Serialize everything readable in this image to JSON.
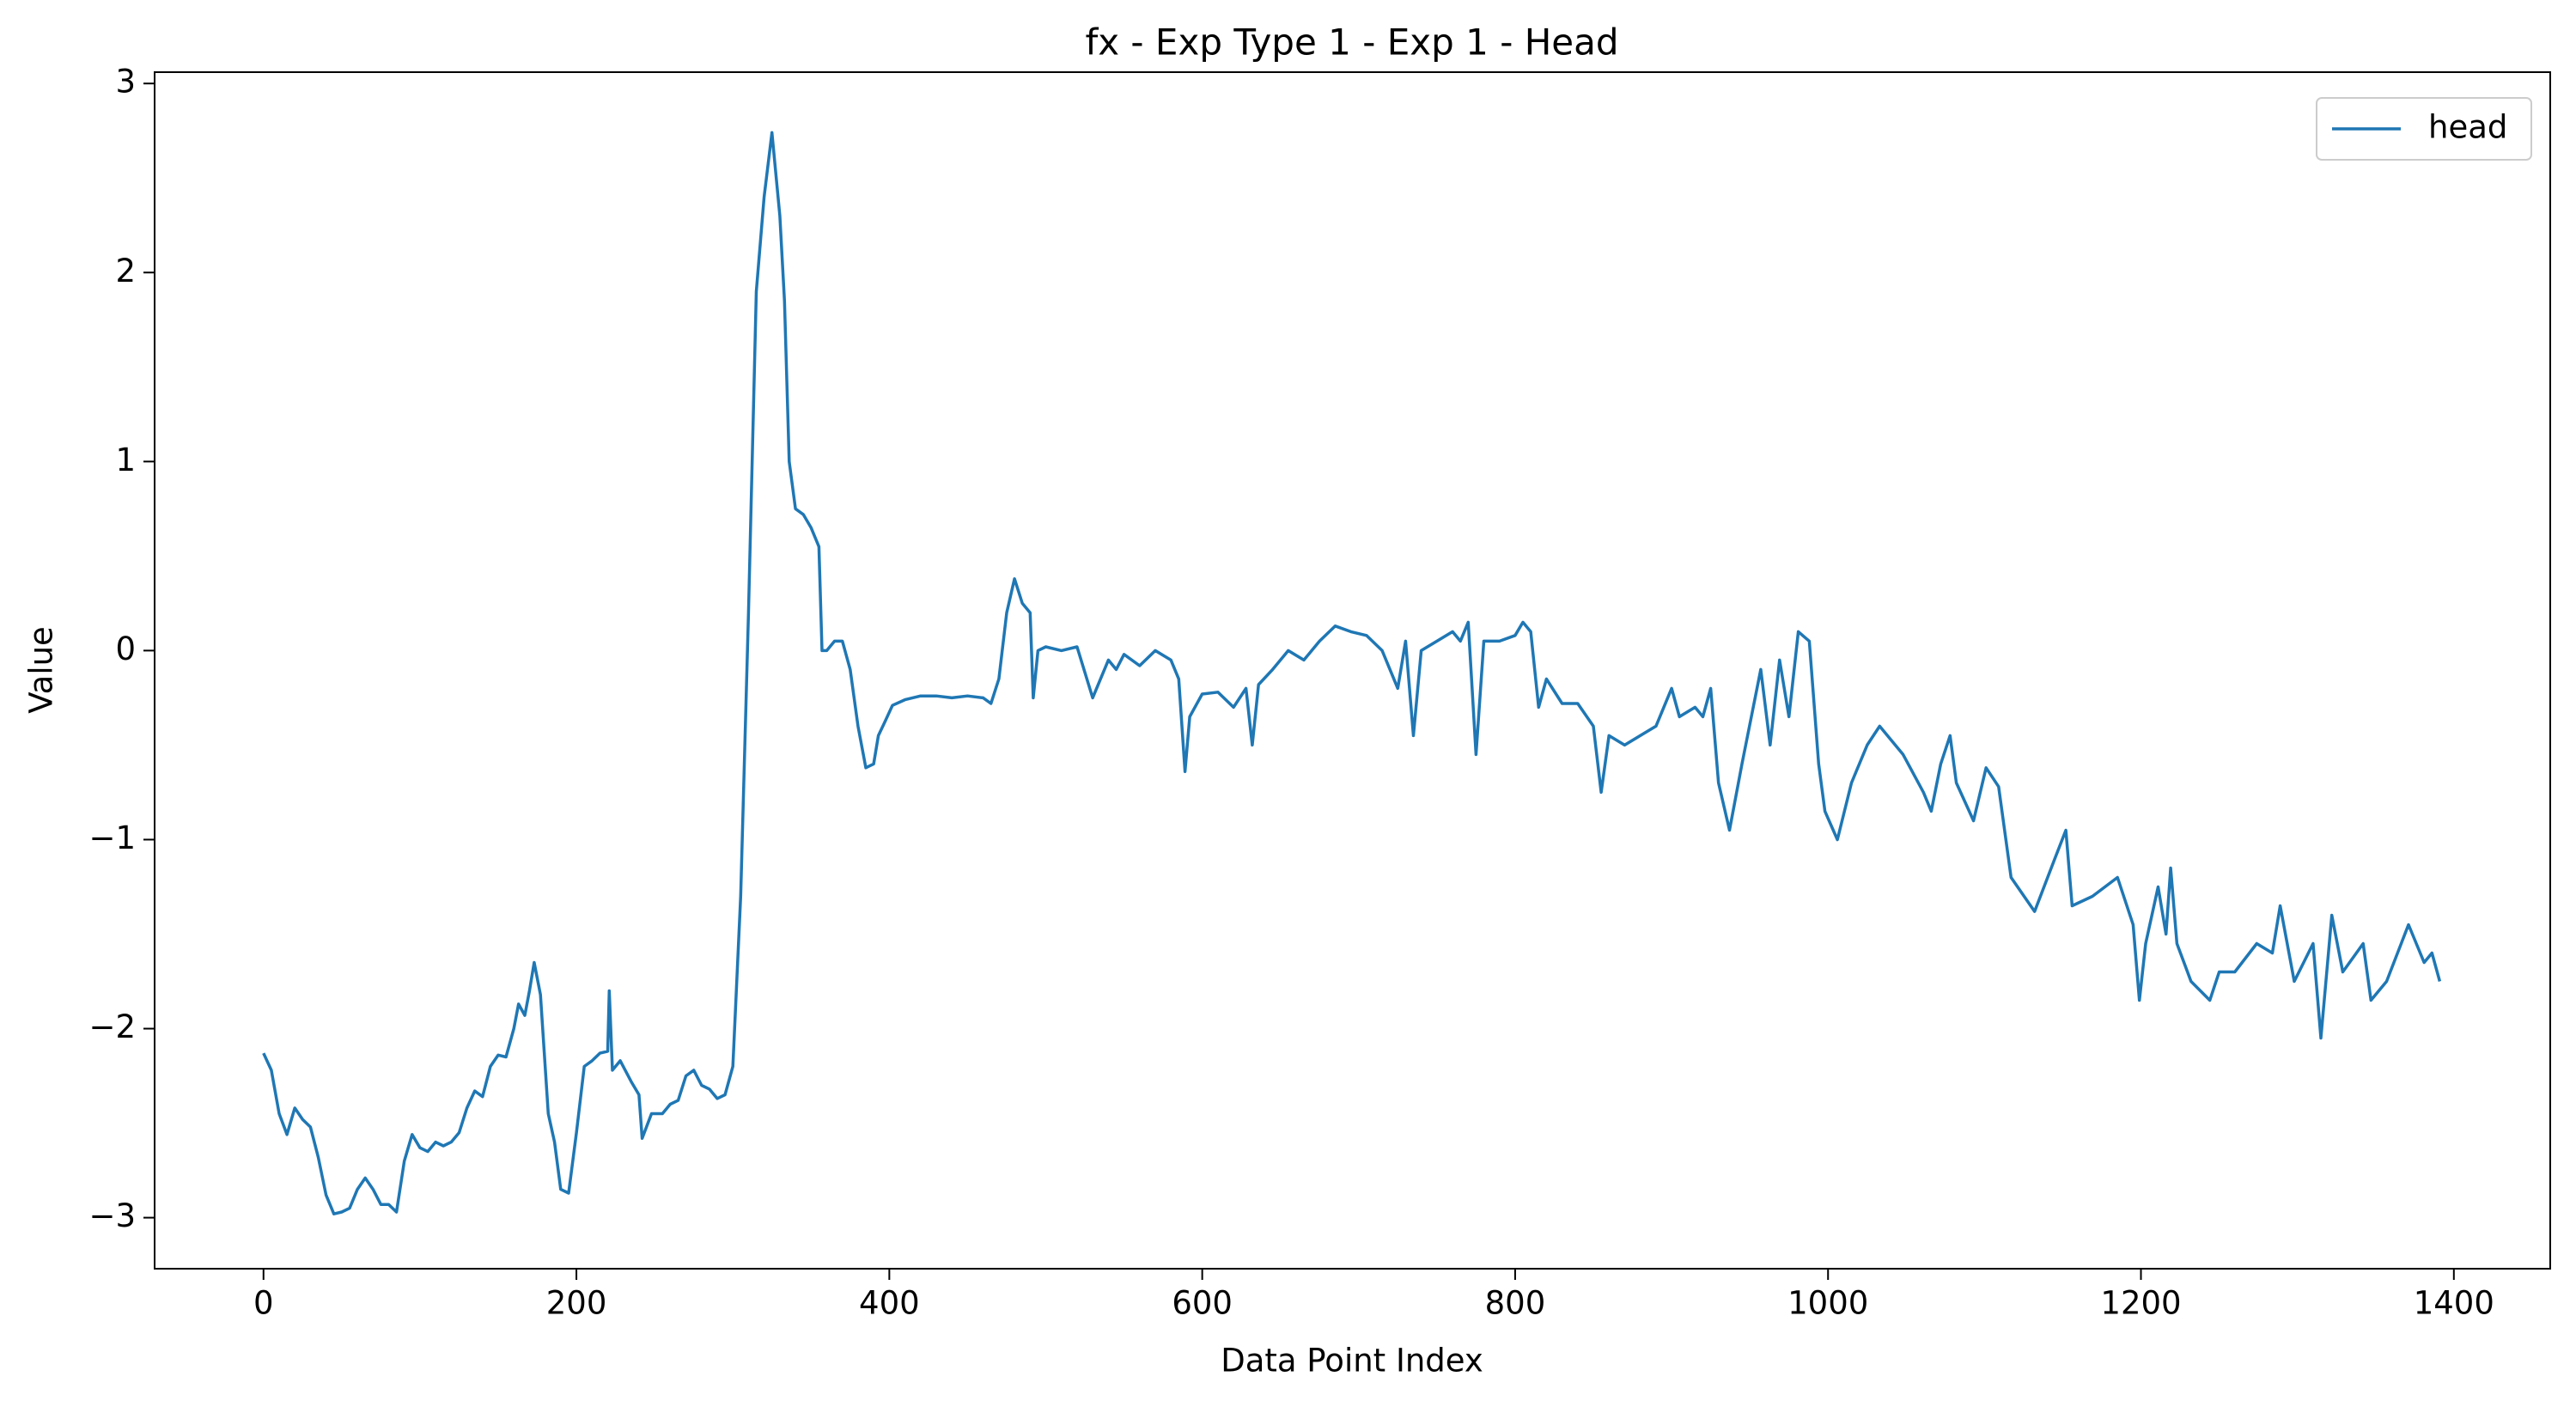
{
  "chart_data": {
    "type": "line",
    "title": "fx - Exp Type 1 - Exp 1 - Head",
    "x_label": "Data Point Index",
    "y_label": "Value",
    "x": [
      0,
      5,
      10,
      15,
      20,
      25,
      30,
      35,
      40,
      45,
      50,
      55,
      60,
      65,
      70,
      75,
      80,
      85,
      90,
      95,
      100,
      105,
      110,
      115,
      120,
      125,
      130,
      135,
      140,
      145,
      150,
      155,
      160,
      163,
      167,
      170,
      173,
      177,
      182,
      186,
      190,
      195,
      200,
      205,
      210,
      215,
      220,
      221,
      223,
      228,
      235,
      240,
      242,
      248,
      255,
      260,
      265,
      270,
      275,
      280,
      285,
      290,
      295,
      300,
      305,
      310,
      315,
      320,
      325,
      330,
      333,
      336,
      340,
      345,
      350,
      355,
      357,
      360,
      365,
      370,
      375,
      380,
      385,
      390,
      393,
      397,
      402,
      410,
      420,
      430,
      440,
      450,
      460,
      465,
      470,
      475,
      480,
      485,
      490,
      492,
      495,
      500,
      510,
      520,
      530,
      540,
      545,
      550,
      560,
      570,
      580,
      585,
      589,
      592,
      600,
      610,
      620,
      628,
      632,
      636,
      645,
      655,
      665,
      675,
      685,
      695,
      705,
      715,
      720,
      725,
      730,
      735,
      740,
      750,
      760,
      765,
      770,
      775,
      780,
      790,
      800,
      805,
      810,
      815,
      820,
      830,
      840,
      850,
      855,
      860,
      870,
      880,
      890,
      900,
      905,
      915,
      920,
      925,
      930,
      937,
      945,
      957,
      963,
      969,
      975,
      981,
      988,
      994,
      998,
      1006,
      1015,
      1025,
      1033,
      1048,
      1061,
      1066,
      1072,
      1078,
      1082,
      1093,
      1101,
      1109,
      1117,
      1132,
      1145,
      1152,
      1156,
      1169,
      1185,
      1195,
      1199,
      1203,
      1211,
      1216,
      1219,
      1223,
      1232,
      1244,
      1250,
      1260,
      1274,
      1284,
      1289,
      1298,
      1310,
      1315,
      1322,
      1329,
      1342,
      1347,
      1357,
      1371,
      1381,
      1386,
      1391
    ],
    "series": [
      {
        "name": "head",
        "color": "#1f77b4",
        "values": [
          -2.13,
          -2.22,
          -2.45,
          -2.56,
          -2.42,
          -2.48,
          -2.52,
          -2.68,
          -2.88,
          -2.98,
          -2.97,
          -2.95,
          -2.85,
          -2.79,
          -2.85,
          -2.93,
          -2.93,
          -2.97,
          -2.7,
          -2.56,
          -2.63,
          -2.65,
          -2.6,
          -2.62,
          -2.6,
          -2.55,
          -2.42,
          -2.33,
          -2.36,
          -2.2,
          -2.14,
          -2.15,
          -2.0,
          -1.87,
          -1.93,
          -1.8,
          -1.65,
          -1.82,
          -2.45,
          -2.6,
          -2.85,
          -2.87,
          -2.55,
          -2.2,
          -2.17,
          -2.13,
          -2.12,
          -1.8,
          -2.22,
          -2.17,
          -2.28,
          -2.35,
          -2.58,
          -2.45,
          -2.45,
          -2.4,
          -2.38,
          -2.25,
          -2.22,
          -2.3,
          -2.32,
          -2.37,
          -2.35,
          -2.2,
          -1.3,
          0.2,
          1.9,
          2.4,
          2.74,
          2.3,
          1.85,
          1.0,
          0.75,
          0.72,
          0.65,
          0.55,
          0.0,
          0.0,
          0.05,
          0.05,
          -0.1,
          -0.4,
          -0.62,
          -0.6,
          -0.45,
          -0.38,
          -0.29,
          -0.26,
          -0.24,
          -0.24,
          -0.25,
          -0.24,
          -0.25,
          -0.28,
          -0.15,
          0.2,
          0.38,
          0.25,
          0.2,
          -0.25,
          0.0,
          0.02,
          0.0,
          0.02,
          -0.25,
          -0.05,
          -0.1,
          -0.02,
          -0.08,
          0.0,
          -0.05,
          -0.15,
          -0.64,
          -0.35,
          -0.23,
          -0.22,
          -0.3,
          -0.2,
          -0.5,
          -0.18,
          -0.1,
          0.0,
          -0.05,
          0.05,
          0.13,
          0.1,
          0.08,
          0.0,
          -0.1,
          -0.2,
          0.05,
          -0.45,
          0.0,
          0.05,
          0.1,
          0.05,
          0.15,
          -0.55,
          0.05,
          0.05,
          0.08,
          0.15,
          0.1,
          -0.3,
          -0.15,
          -0.28,
          -0.28,
          -0.4,
          -0.75,
          -0.45,
          -0.5,
          -0.45,
          -0.4,
          -0.2,
          -0.35,
          -0.3,
          -0.35,
          -0.2,
          -0.7,
          -0.95,
          -0.6,
          -0.1,
          -0.5,
          -0.05,
          -0.35,
          0.1,
          0.05,
          -0.6,
          -0.85,
          -1.0,
          -0.7,
          -0.5,
          -0.4,
          -0.55,
          -0.75,
          -0.85,
          -0.6,
          -0.45,
          -0.7,
          -0.9,
          -0.62,
          -0.72,
          -1.2,
          -1.38,
          -1.1,
          -0.95,
          -1.35,
          -1.3,
          -1.2,
          -1.45,
          -1.85,
          -1.55,
          -1.25,
          -1.5,
          -1.15,
          -1.55,
          -1.75,
          -1.85,
          -1.7,
          -1.7,
          -1.55,
          -1.6,
          -1.35,
          -1.75,
          -1.55,
          -2.05,
          -1.4,
          -1.7,
          -1.55,
          -1.85,
          -1.75,
          -1.45,
          -1.65,
          -1.6,
          -1.75
        ]
      }
    ],
    "xlim": [
      -69.6,
      1461.6
    ],
    "ylim": [
      -3.27,
      3.06
    ],
    "xticks": [
      0,
      200,
      400,
      600,
      800,
      1000,
      1200,
      1400
    ],
    "yticks": [
      {
        "value": -3,
        "label": "−3"
      },
      {
        "value": -2,
        "label": "−2"
      },
      {
        "value": -1,
        "label": "−1"
      },
      0,
      1,
      2,
      3
    ],
    "legend": "upper right"
  }
}
